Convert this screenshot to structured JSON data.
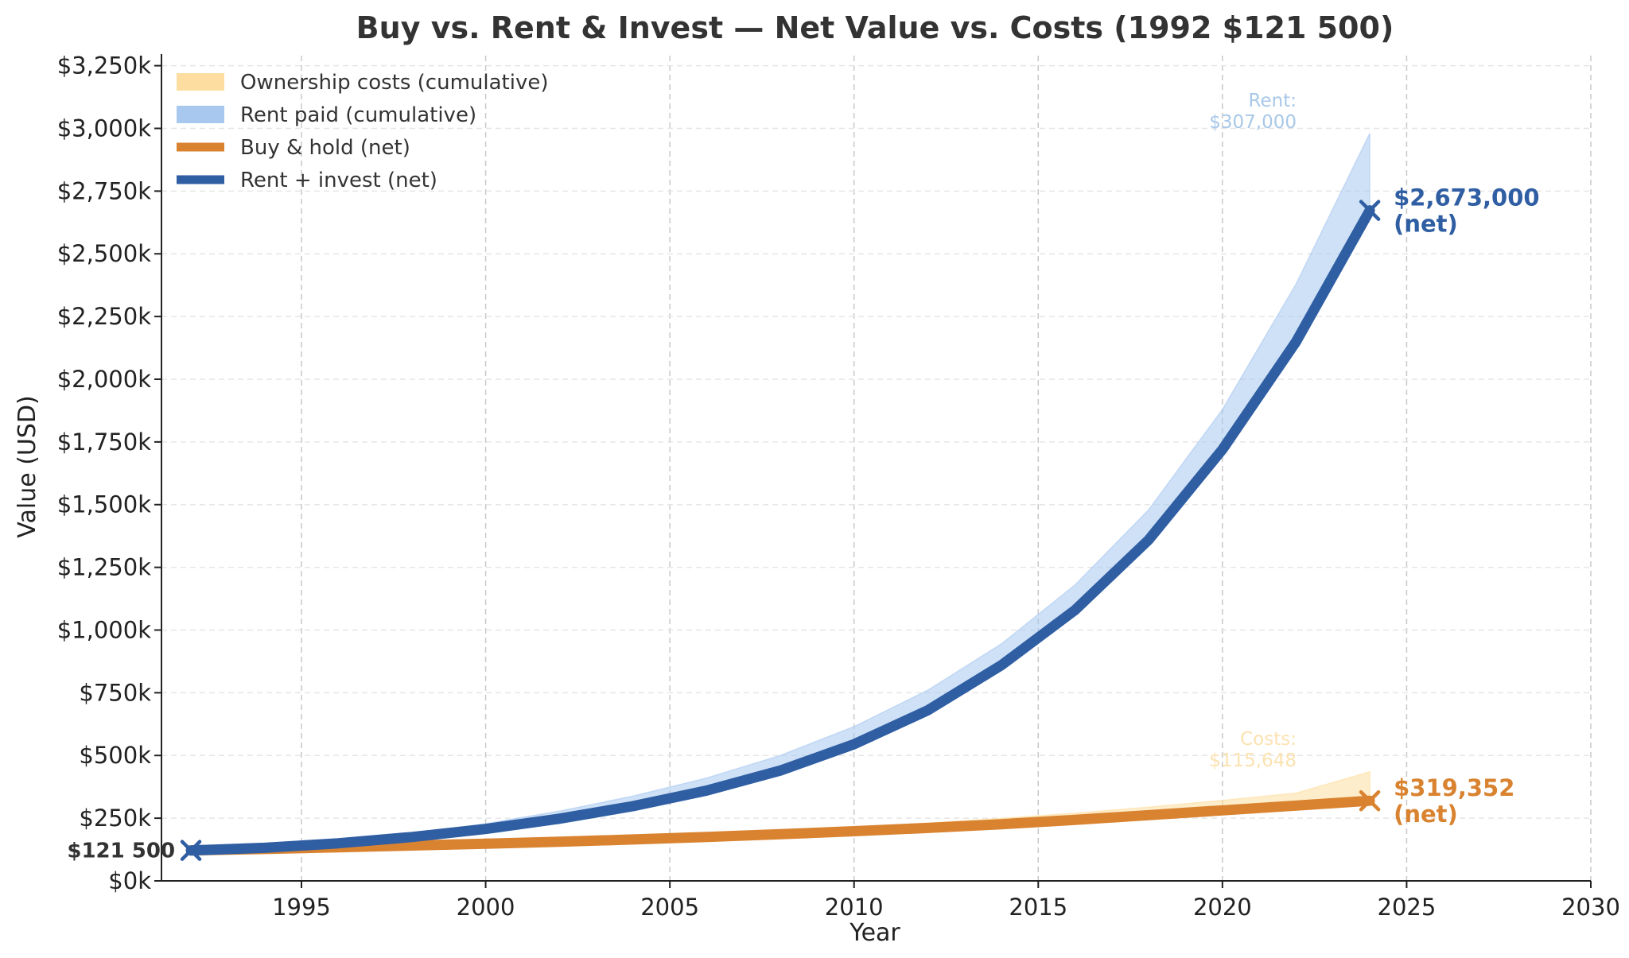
{
  "chart_data": {
    "type": "line",
    "title": "Buy vs. Rent & Invest — Net Value vs. Costs (1992 $121 500)",
    "xlabel": "Year",
    "ylabel": "Value (USD)",
    "xlim": [
      1991.2,
      2030
    ],
    "ylim": [
      0,
      3290000
    ],
    "x_ticks": [
      1995,
      2000,
      2005,
      2010,
      2015,
      2020,
      2025,
      2030
    ],
    "y_ticks": [
      0,
      250000,
      500000,
      750000,
      1000000,
      1250000,
      1500000,
      1750000,
      2000000,
      2250000,
      2500000,
      2750000,
      3000000,
      3250000
    ],
    "y_tick_labels": [
      "$0k",
      "$250k",
      "$500k",
      "$750k",
      "$1,000k",
      "$1,250k",
      "$1,500k",
      "$1,750k",
      "$2,000k",
      "$2,250k",
      "$2,500k",
      "$2,750k",
      "$3,000k",
      "$3,250k"
    ],
    "grid": true,
    "legend_position": "top-left",
    "legend": [
      {
        "label": "Ownership costs (cumulative)",
        "kind": "patch",
        "color": "#fddea0"
      },
      {
        "label": "Rent paid (cumulative)",
        "kind": "patch",
        "color": "#a8c8f0"
      },
      {
        "label": "Buy & hold (net)",
        "kind": "line",
        "color": "#d98330"
      },
      {
        "label": "Rent + invest (net)",
        "kind": "line",
        "color": "#2f5ea3"
      }
    ],
    "x": [
      1992,
      1994,
      1996,
      1998,
      2000,
      2002,
      2004,
      2006,
      2008,
      2010,
      2012,
      2014,
      2016,
      2018,
      2020,
      2022,
      2024
    ],
    "series": [
      {
        "name": "Rent + invest (net)",
        "color": "#2f5ea3",
        "values": [
          121500,
          132000,
          150000,
          175000,
          207000,
          248000,
          298000,
          360000,
          440000,
          545000,
          680000,
          860000,
          1080000,
          1360000,
          1720000,
          2150000,
          2673000
        ]
      },
      {
        "name": "Buy & hold (net)",
        "color": "#d98330",
        "values": [
          121500,
          127000,
          134000,
          141000,
          148000,
          156000,
          165000,
          175000,
          186000,
          198000,
          211000,
          226000,
          243000,
          262000,
          281000,
          300000,
          319352
        ]
      },
      {
        "name": "Rent paid (cumulative)",
        "kind": "band",
        "color": "#a8c8f0",
        "lower_series": "Rent + invest (net)",
        "upper": [
          121500,
          134500,
          157000,
          188000,
          228000,
          278000,
          338000,
          410000,
          500000,
          615000,
          760000,
          945000,
          1180000,
          1480000,
          1880000,
          2380000,
          2980000
        ]
      },
      {
        "name": "Ownership costs (cumulative)",
        "kind": "band",
        "color": "#fddea0",
        "lower_series": "Buy & hold (net)",
        "upper": [
          121500,
          128500,
          136500,
          145000,
          154000,
          163500,
          174000,
          186000,
          199000,
          214000,
          230000,
          249000,
          270000,
          294000,
          321000,
          350000,
          435000
        ]
      }
    ],
    "annotations": {
      "start_label": "$121 500",
      "start": {
        "x": 1992,
        "y": 121500
      },
      "rent_end": {
        "x": 2024,
        "y": 2673000,
        "value_label": "$2,673,000",
        "sub_label": "(net)",
        "color": "#2f5ea3"
      },
      "buy_end": {
        "x": 2024,
        "y": 319352,
        "value_label": "$319,352",
        "sub_label": "(net)",
        "color": "#d98330"
      },
      "rent_note": {
        "line1": "Rent:",
        "line2": "$307,000",
        "color": "#a8c8e8"
      },
      "cost_note": {
        "line1": "Costs:",
        "line2": "$115,648",
        "color": "#fbe2b0"
      }
    }
  }
}
